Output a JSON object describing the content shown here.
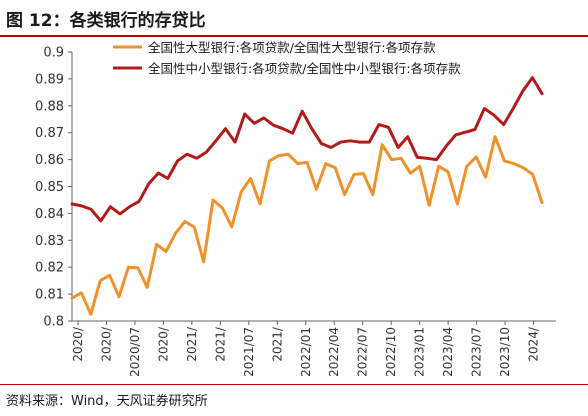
{
  "figure": {
    "title": "图 12：各类银行的存贷比",
    "source": "资料来源：Wind，天风证券研究所"
  },
  "colors": {
    "large_bank_line": "#f0922b",
    "small_medium_bank_line": "#b31b1b",
    "title_rule": "#c00000",
    "axis": "#666666"
  },
  "chart_data": {
    "type": "line",
    "ylim": [
      0.8,
      0.9
    ],
    "y_ticks": [
      0.8,
      0.81,
      0.82,
      0.83,
      0.84,
      0.85,
      0.86,
      0.87,
      0.88,
      0.89,
      0.9
    ],
    "y_tick_labels": [
      "0.8",
      "0.81",
      "0.82",
      "0.83",
      "0.84",
      "0.85",
      "0.86",
      "0.87",
      "0.88",
      "0.89",
      "0.9"
    ],
    "x_tick_labels": [
      "2020/",
      "2020/",
      "2020/07",
      "2020/",
      "2021/",
      "2021/",
      "2021/07",
      "2021/",
      "2022/01",
      "2022/04",
      "2022/07",
      "2022/10",
      "2023/01",
      "2023/04",
      "2023/07",
      "2023/10",
      "2024/"
    ],
    "legend_position": "top",
    "grid": false,
    "series": [
      {
        "name": "全国性大型银行:各项贷款/全国性大型银行:各项存款",
        "values": [
          0.8085,
          0.8105,
          0.8025,
          0.815,
          0.817,
          0.809,
          0.82,
          0.8198,
          0.8125,
          0.8285,
          0.8258,
          0.8325,
          0.837,
          0.835,
          0.822,
          0.845,
          0.842,
          0.835,
          0.848,
          0.853,
          0.8435,
          0.8595,
          0.8615,
          0.862,
          0.8585,
          0.859,
          0.849,
          0.8585,
          0.857,
          0.847,
          0.8545,
          0.8548,
          0.847,
          0.8655,
          0.86,
          0.8605,
          0.855,
          0.8575,
          0.843,
          0.8575,
          0.8555,
          0.8435,
          0.8575,
          0.861,
          0.8535,
          0.8685,
          0.8595,
          0.8585,
          0.857,
          0.8545,
          0.844
        ]
      },
      {
        "name": "全国性中小型银行:各项贷款/全国性中小型银行:各项存款",
        "values": [
          0.8435,
          0.8428,
          0.8415,
          0.8372,
          0.8425,
          0.8398,
          0.8425,
          0.8445,
          0.851,
          0.855,
          0.853,
          0.8595,
          0.862,
          0.8605,
          0.8628,
          0.867,
          0.8715,
          0.8665,
          0.877,
          0.8735,
          0.8755,
          0.8728,
          0.8715,
          0.8698,
          0.878,
          0.8715,
          0.866,
          0.8645,
          0.8665,
          0.867,
          0.8665,
          0.8665,
          0.873,
          0.872,
          0.8645,
          0.8685,
          0.8608,
          0.8605,
          0.86,
          0.865,
          0.8692,
          0.8702,
          0.8712,
          0.879,
          0.8765,
          0.873,
          0.879,
          0.8855,
          0.8905,
          0.8845
        ]
      }
    ]
  }
}
